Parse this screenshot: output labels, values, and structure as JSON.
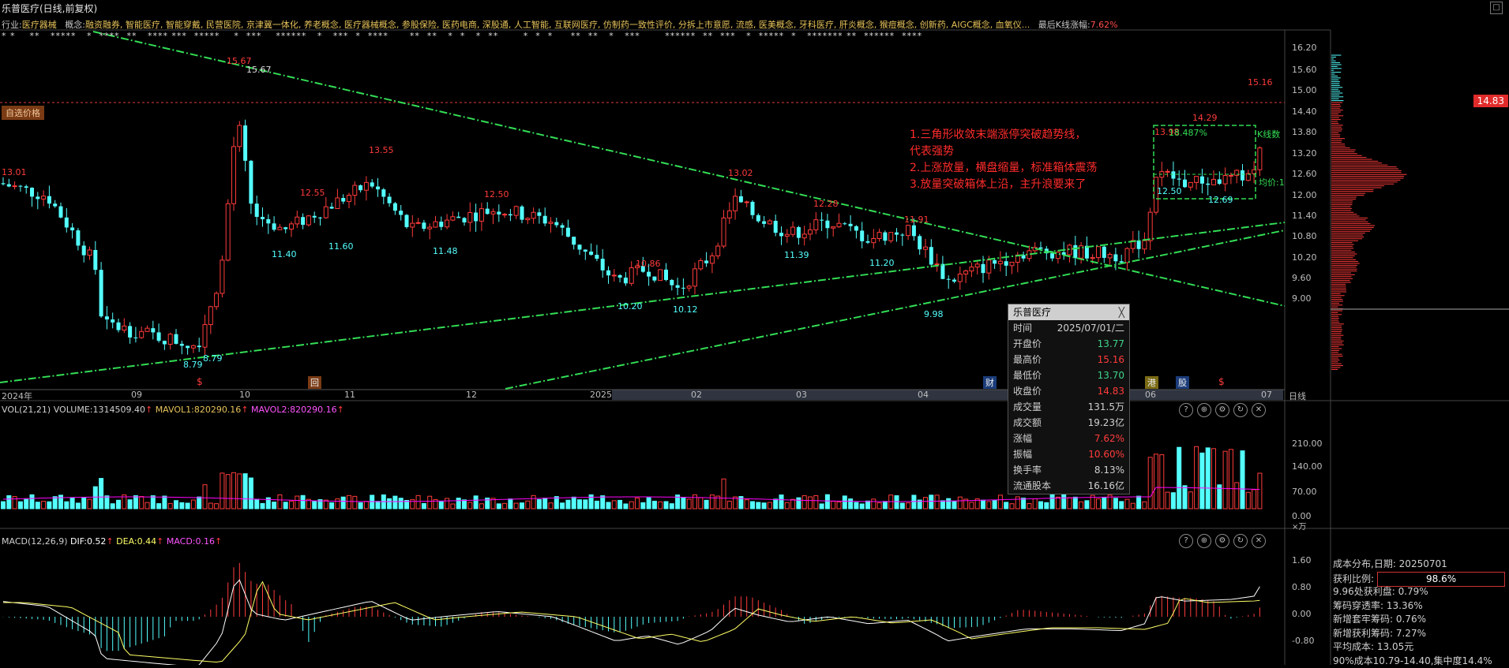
{
  "title": "乐普医疗(日线,前复权)",
  "window_button": "□",
  "industry": {
    "label": "行业:",
    "value": "医疗器械"
  },
  "concepts": {
    "label": "概念:",
    "value": "融资融券, 智能医疗, 智能穿戴, 民营医院, 京津冀一体化, 养老概念, 医疗器械概念, 参股保险, 医药电商, 深股通, 人工智能, 互联网医疗, 仿制药一致性评价, 分拆上市意愿, 流感, 医美概念, 牙科医疗, 肝炎概念, 猴痘概念, 创新药, AIGC概念, 血氧仪...",
    "last_label": "最后K线涨幅:",
    "last_value": "7.62%"
  },
  "star_row": "* *    **   *****   *  ****  **   **** ***  *****    *  ***    ******   *   ***  *  ****      **  **   *  *   *  **       *  *  *     **  **   *   ***       ******  **  ***   *  *****  *   ******* **  ******  ****",
  "price_axis": [
    "16.20",
    "15.60",
    "15.00",
    "14.40",
    "13.80",
    "13.20",
    "12.60",
    "12.00",
    "11.40",
    "10.80",
    "10.20",
    "9.60",
    "9.00"
  ],
  "price_labels": [
    "13.01",
    "15.67",
    "15.67",
    "13.55",
    "12.55",
    "11.40",
    "11.60",
    "11.48",
    "12.50",
    "10.86",
    "10.20",
    "10.12",
    "13.02",
    "12.28",
    "11.39",
    "11.20",
    "11.91",
    "9.98",
    "8.79",
    "8.79",
    "13.98",
    "14.29",
    "12.69",
    "12.50",
    "15.16"
  ],
  "box_labels": {
    "pct": "18.487%",
    "kline": "K线数",
    "avg": "均价:1"
  },
  "current_price": "14.83",
  "custom_price": "自选价格",
  "annotation": [
    "1.三角形收敛末端涨停突破趋势线，",
    "代表强势",
    "2.上涨放量，横盘缩量，标准箱体震荡",
    "3.放量突破箱体上沿，主升浪要来了"
  ],
  "time_axis": [
    "2024年",
    "09",
    "10",
    "11",
    "12",
    "2025",
    "02",
    "03",
    "04",
    "05",
    "06",
    "07"
  ],
  "time_tags": {
    "hui": "回",
    "cai": "财",
    "gang": "港",
    "gu": "股",
    "dollar1": "$",
    "dollar2": "$"
  },
  "date_axis_label": "日线",
  "volume_panel": {
    "name": "VOL(21,21)",
    "volume_label": "VOLUME:1314509.40",
    "mavol1": "MAVOL1:820290.16",
    "mavol2": "MAVOL2:820290.16",
    "arrow": "↑",
    "axis": [
      "210.00",
      "140.00",
      "70.00",
      "0.00"
    ],
    "unit": "×万"
  },
  "macd_panel": {
    "name": "MACD(12,26,9)",
    "dif": "DIF:0.52",
    "dea": "DEA:0.44",
    "macd": "MACD:0.16",
    "arrow": "↑",
    "axis": [
      "1.60",
      "0.80",
      "0.00",
      "-0.80"
    ]
  },
  "tooltip": {
    "title": "乐普医疗",
    "close": "╳",
    "rows": [
      {
        "k": "时间",
        "v": "2025/07/01/二",
        "c": ""
      },
      {
        "k": "开盘价",
        "v": "13.77",
        "c": "green"
      },
      {
        "k": "最高价",
        "v": "15.16",
        "c": "red"
      },
      {
        "k": "最低价",
        "v": "13.70",
        "c": "green"
      },
      {
        "k": "收盘价",
        "v": "14.83",
        "c": "red"
      },
      {
        "k": "成交量",
        "v": "131.5万",
        "c": ""
      },
      {
        "k": "成交额",
        "v": "19.23亿",
        "c": ""
      },
      {
        "k": "涨幅",
        "v": "7.62%",
        "c": "red"
      },
      {
        "k": "振幅",
        "v": "10.60%",
        "c": "red"
      },
      {
        "k": "换手率",
        "v": "8.13%",
        "c": ""
      },
      {
        "k": "流通股本",
        "v": "16.16亿",
        "c": ""
      }
    ]
  },
  "cost_panel": [
    "成本分布,日期: 20250701",
    "获利比例:",
    "9.96处获利盘: 0.79%",
    "筹码穿透率: 13.36%",
    "新增套牢筹码: 0.76%",
    "新增获利筹码: 7.27%",
    "平均成本: 13.05元",
    "90%成本10.79-14.40,集中度14.4%"
  ],
  "profit_ratio": "98.6%",
  "icons": [
    "help-icon",
    "zoom-icon",
    "settings-icon",
    "refresh-icon",
    "close-icon"
  ],
  "colors": {
    "up": "#ff3b3b",
    "down": "#54ffff",
    "trend": "#33dd55",
    "mavol1": "#d9d9d9",
    "mavol2": "#ff00ff",
    "dif": "#ffffff",
    "dea": "#ffff66"
  }
}
